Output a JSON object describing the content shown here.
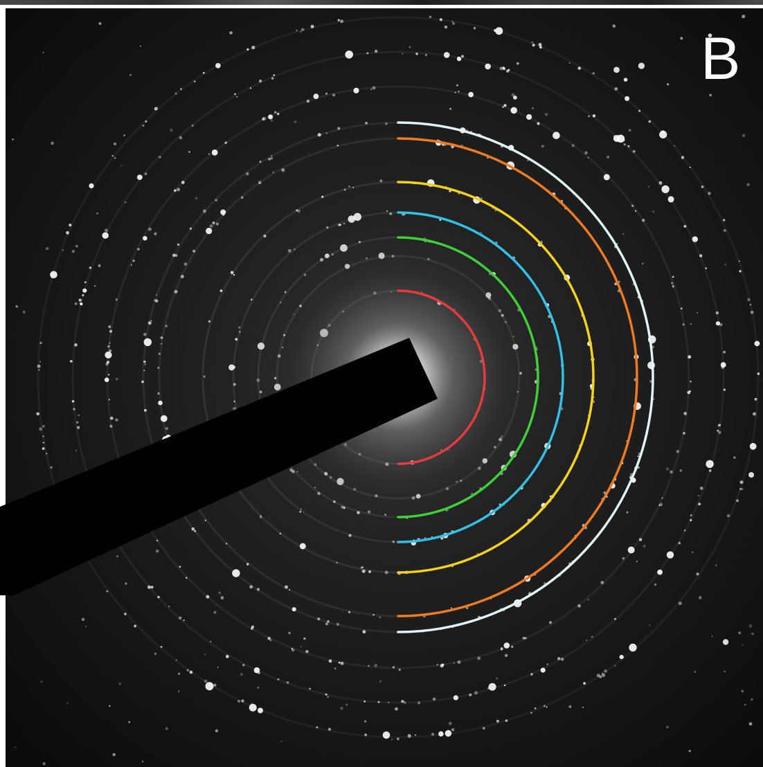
{
  "figure": {
    "panel_label": "B",
    "image_type": "selected-area electron diffraction pattern",
    "background_color": "#101010",
    "beam_stop_color": "#000000"
  },
  "rings": [
    {
      "name": "ring-1",
      "color": "#e53a3e"
    },
    {
      "name": "ring-2",
      "color": "#3fcf3a"
    },
    {
      "name": "ring-3",
      "color": "#33c0e6"
    },
    {
      "name": "ring-4",
      "color": "#f2d21c"
    },
    {
      "name": "ring-5",
      "color": "#ee7a22"
    },
    {
      "name": "ring-6",
      "color": "#dff5f5"
    }
  ]
}
